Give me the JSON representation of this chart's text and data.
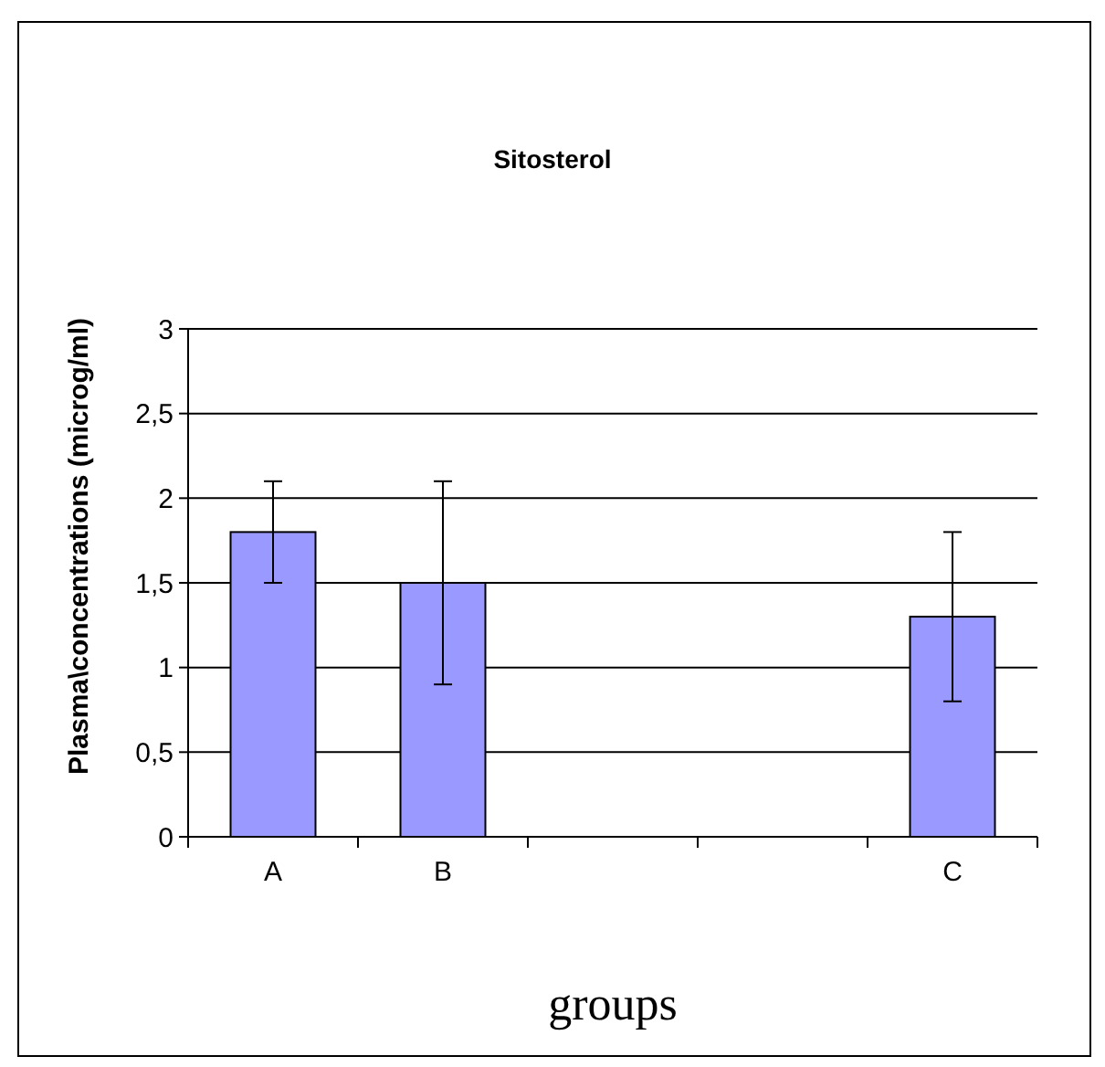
{
  "chart_data": {
    "type": "bar",
    "title": "Sitosterol",
    "xlabel": "groups",
    "ylabel": "Plasma\\concentrations (microg/ml)",
    "categories": [
      "A",
      "B",
      null,
      null,
      "C"
    ],
    "values": [
      1.8,
      1.5,
      null,
      null,
      1.3
    ],
    "errors": [
      [
        1.5,
        2.1
      ],
      [
        0.9,
        2.1
      ],
      null,
      null,
      [
        0.8,
        1.8
      ]
    ],
    "color": "#9999ff",
    "ylim": [
      0,
      3
    ],
    "yticks": [
      0,
      {
        "value": 0.5,
        "label": "0,5"
      },
      1,
      {
        "value": 1.5,
        "label": "1,5"
      },
      2,
      {
        "value": 2.5,
        "label": "2,5"
      },
      3
    ],
    "grid": "y"
  }
}
